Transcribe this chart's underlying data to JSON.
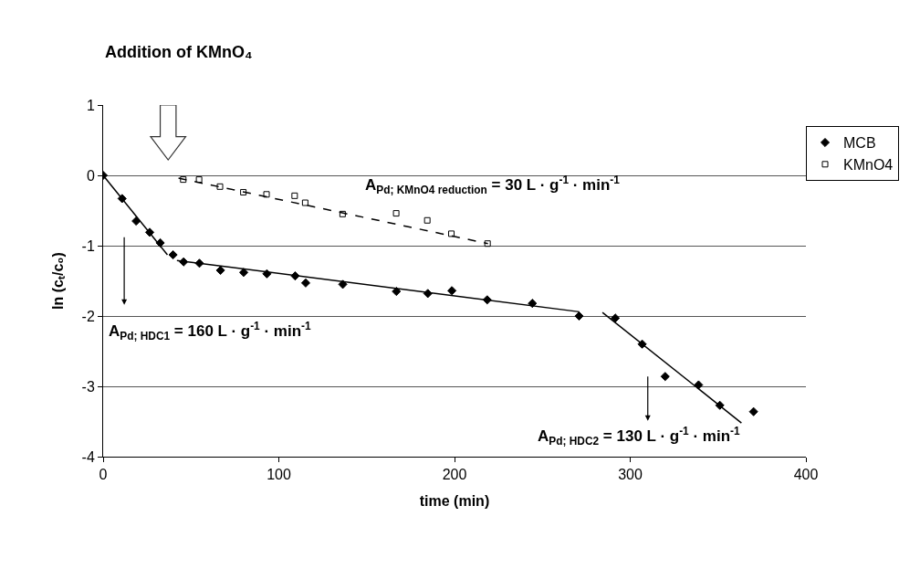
{
  "chart_data": {
    "type": "scatter",
    "xlabel": "time (min)",
    "ylabel": "ln (cₜ/c₀)",
    "xlim": [
      0,
      400
    ],
    "xticks": [
      0,
      100,
      200,
      300,
      400
    ],
    "ylim": [
      -4,
      1
    ],
    "yticks": [
      -4,
      -3,
      -2,
      -1,
      0,
      1
    ],
    "grid": "y",
    "legend": "top right",
    "series": [
      {
        "name": "MCB",
        "color": "#000000",
        "marker": "diamond",
        "x": [
          0,
          10.8,
          18.8,
          26.5,
          32.5,
          39.8,
          45.8,
          54.8,
          66.8,
          80,
          93.2,
          109.3,
          115.3,
          136.4,
          166.9,
          184.8,
          198.5,
          218.6,
          244.3,
          270.9,
          291.5,
          306.8,
          319.9,
          338.9,
          351,
          370.2
        ],
        "values": [
          0,
          -0.33,
          -0.65,
          -0.81,
          -0.96,
          -1.13,
          -1.23,
          -1.25,
          -1.35,
          -1.38,
          -1.4,
          -1.43,
          -1.53,
          -1.55,
          -1.65,
          -1.68,
          -1.64,
          -1.77,
          -1.82,
          -2.0,
          -2.03,
          -2.4,
          -2.86,
          -2.98,
          -3.27,
          -3.36
        ]
      },
      {
        "name": "KMnO4",
        "color": "#000000",
        "marker": "square",
        "x": [
          45.6,
          54.6,
          66.5,
          79.8,
          93,
          109,
          115,
          136.3,
          166.8,
          184.5,
          198.2,
          218.8
        ],
        "values": [
          -0.06,
          -0.06,
          -0.16,
          -0.24,
          -0.27,
          -0.29,
          -0.39,
          -0.55,
          -0.54,
          -0.64,
          -0.83,
          -0.97
        ]
      },
      {
        "type": "line",
        "color": "#000000",
        "marker": "none",
        "line_style": "solid",
        "x": [
          0,
          36.6
        ],
        "values": [
          0,
          -1.13
        ]
      },
      {
        "type": "line",
        "color": "#000000",
        "marker": "none",
        "line_style": "solid",
        "x": [
          42,
          271
        ],
        "values": [
          -1.21,
          -1.94
        ]
      },
      {
        "type": "line",
        "color": "#000000",
        "marker": "none",
        "line_style": "solid",
        "x": [
          284.2,
          363.3
        ],
        "values": [
          -1.95,
          -3.52
        ]
      },
      {
        "type": "line",
        "color": "#000000",
        "marker": "none",
        "line_style": "dashed",
        "x": [
          42.9,
          219
        ],
        "values": [
          -0.04,
          -0.97
        ]
      }
    ],
    "annotations": [
      "Addition of KMnO₄",
      "A$_{Pd; KMnO4 reduction}$ = 30 L · g$^{-1}$ · min$^{-1}$",
      "A$_{Pd; HDC1}$ = 160 L · g$^{-1}$ · min$^{-1}$",
      "A$_{Pd; HDC2}$ = 130 L · g$^{-1}$ · min$^{-1}$"
    ]
  }
}
